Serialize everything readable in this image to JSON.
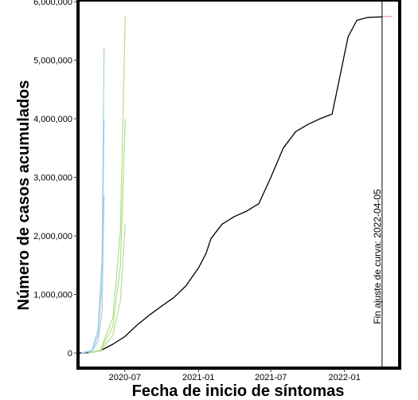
{
  "chart_data": {
    "type": "line",
    "xlabel": "Fecha de inicio de síntomas",
    "ylabel": "Número de casos acumulados",
    "x_ticks": [
      "2020-07",
      "2021-01",
      "2021-07",
      "2022-01"
    ],
    "y_ticks": [
      "0",
      "1,000,000",
      "2,000,000",
      "3,000,000",
      "4,000,000",
      "5,000,000",
      "6,000,000"
    ],
    "ylim": [
      0,
      6000000
    ],
    "xlim": [
      "2020-03-10",
      "2022-05-15"
    ],
    "grid": false,
    "annotation": {
      "text": "Fin ajuste de curva: 2022-04-05",
      "x": "2022-04-05"
    },
    "series": [
      {
        "color": "#000000",
        "points": [
          [
            "2020-03-10",
            0
          ],
          [
            "2020-04-01",
            5000
          ],
          [
            "2020-05-01",
            40000
          ],
          [
            "2020-06-01",
            150000
          ],
          [
            "2020-07-01",
            280000
          ],
          [
            "2020-08-01",
            480000
          ],
          [
            "2020-09-01",
            650000
          ],
          [
            "2020-10-01",
            800000
          ],
          [
            "2020-11-01",
            950000
          ],
          [
            "2020-12-01",
            1150000
          ],
          [
            "2021-01-01",
            1450000
          ],
          [
            "2021-01-20",
            1700000
          ],
          [
            "2021-02-01",
            1950000
          ],
          [
            "2021-03-01",
            2200000
          ],
          [
            "2021-04-01",
            2330000
          ],
          [
            "2021-05-01",
            2420000
          ],
          [
            "2021-06-01",
            2550000
          ],
          [
            "2021-07-01",
            3000000
          ],
          [
            "2021-08-01",
            3500000
          ],
          [
            "2021-09-01",
            3780000
          ],
          [
            "2021-10-01",
            3900000
          ],
          [
            "2021-11-01",
            4000000
          ],
          [
            "2021-12-01",
            4080000
          ],
          [
            "2021-12-20",
            4700000
          ],
          [
            "2022-01-10",
            5400000
          ],
          [
            "2022-02-01",
            5680000
          ],
          [
            "2022-03-01",
            5730000
          ],
          [
            "2022-04-05",
            5740000
          ]
        ]
      },
      {
        "color": "#ff8fa3",
        "points": [
          [
            "2022-04-05",
            5740000
          ],
          [
            "2022-04-20",
            5745000
          ],
          [
            "2022-05-01",
            5750000
          ]
        ]
      },
      {
        "color": "#a6cee3",
        "points": [
          [
            "2020-03-15",
            0
          ],
          [
            "2020-04-10",
            30000
          ],
          [
            "2020-04-25",
            200000
          ],
          [
            "2020-05-05",
            700000
          ],
          [
            "2020-05-10",
            2700000
          ]
        ]
      },
      {
        "color": "#a6cee3",
        "points": [
          [
            "2020-03-15",
            0
          ],
          [
            "2020-04-10",
            40000
          ],
          [
            "2020-04-25",
            300000
          ],
          [
            "2020-05-05",
            1200000
          ],
          [
            "2020-05-10",
            4000000
          ]
        ]
      },
      {
        "color": "#a6cee3",
        "points": [
          [
            "2020-03-15",
            0
          ],
          [
            "2020-04-10",
            50000
          ],
          [
            "2020-04-25",
            400000
          ],
          [
            "2020-05-05",
            1600000
          ],
          [
            "2020-05-10",
            5200000
          ]
        ]
      },
      {
        "color": "#b2df8a",
        "points": [
          [
            "2020-04-01",
            0
          ],
          [
            "2020-05-01",
            30000
          ],
          [
            "2020-06-01",
            300000
          ],
          [
            "2020-06-20",
            900000
          ],
          [
            "2020-07-02",
            2200000
          ]
        ]
      },
      {
        "color": "#b2df8a",
        "points": [
          [
            "2020-04-01",
            0
          ],
          [
            "2020-05-01",
            40000
          ],
          [
            "2020-06-01",
            450000
          ],
          [
            "2020-06-20",
            1500000
          ],
          [
            "2020-07-02",
            4000000
          ]
        ]
      },
      {
        "color": "#b2df8a",
        "points": [
          [
            "2020-04-01",
            0
          ],
          [
            "2020-05-01",
            50000
          ],
          [
            "2020-06-01",
            600000
          ],
          [
            "2020-06-20",
            2100000
          ],
          [
            "2020-07-02",
            5750000
          ]
        ]
      }
    ]
  }
}
